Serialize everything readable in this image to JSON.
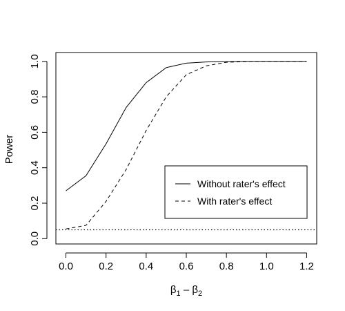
{
  "chart_data": {
    "type": "line",
    "xlabel_main": "β",
    "xlabel_sub1": "1",
    "xlabel_minus": " – ",
    "xlabel_sub2": "2",
    "ylabel": "Power",
    "xlim": [
      -0.05,
      1.25
    ],
    "ylim": [
      -0.03,
      1.05
    ],
    "xticks": [
      "0.0",
      "0.2",
      "0.4",
      "0.6",
      "0.8",
      "1.0",
      "1.2"
    ],
    "yticks": [
      "0.0",
      "0.2",
      "0.4",
      "0.6",
      "0.8",
      "1.0"
    ],
    "x": [
      0.0,
      0.1,
      0.2,
      0.3,
      0.4,
      0.5,
      0.6,
      0.7,
      0.8,
      0.9,
      1.0,
      1.1,
      1.2
    ],
    "series": [
      {
        "name": "Without rater's effect",
        "dash": "solid",
        "values": [
          0.27,
          0.355,
          0.535,
          0.74,
          0.88,
          0.965,
          0.99,
          0.997,
          0.999,
          1.0,
          1.0,
          1.0,
          1.0
        ]
      },
      {
        "name": "With rater's effect",
        "dash": "dashed",
        "values": [
          0.055,
          0.075,
          0.21,
          0.39,
          0.61,
          0.8,
          0.925,
          0.975,
          0.995,
          0.999,
          1.0,
          1.0,
          1.0
        ]
      }
    ],
    "reference_line": {
      "y": 0.05,
      "style": "dotted"
    },
    "legend_position": "right-lower"
  }
}
